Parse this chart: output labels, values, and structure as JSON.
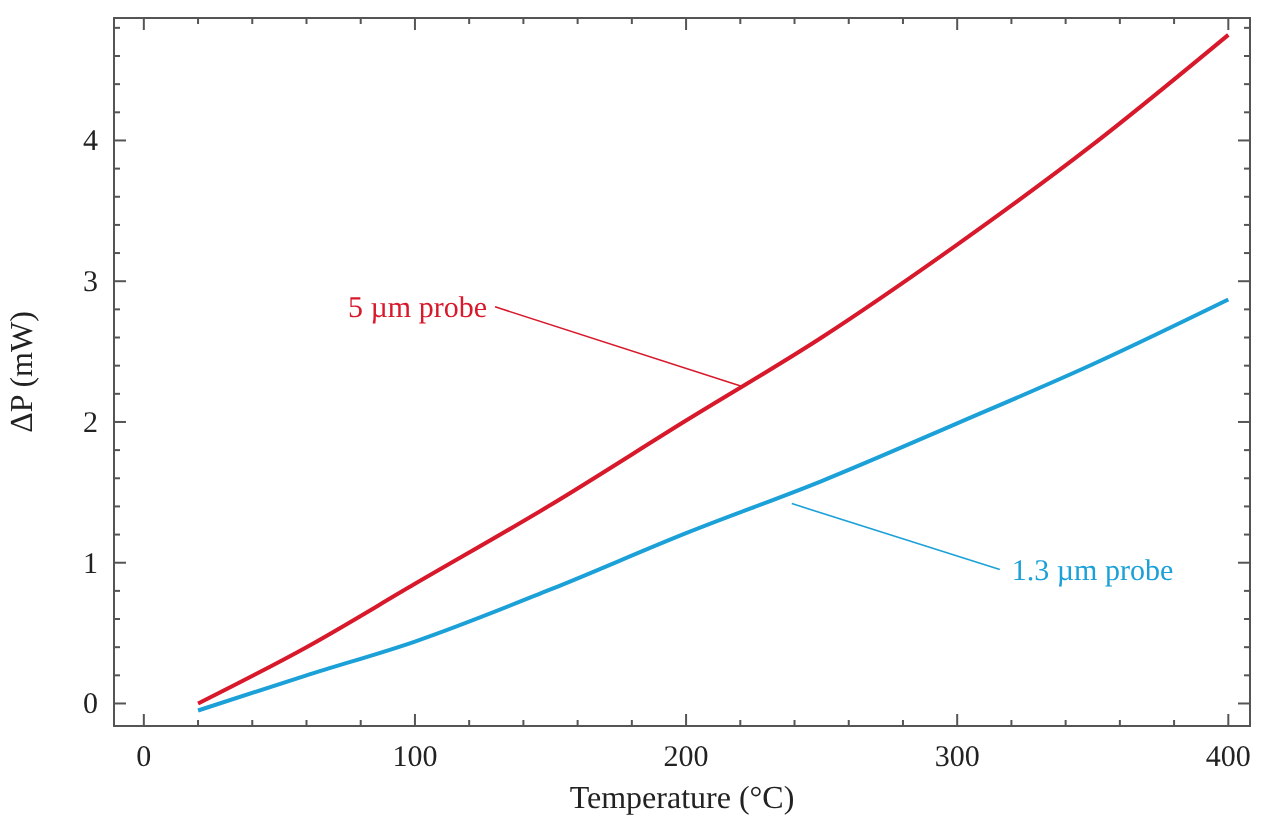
{
  "chart_data": {
    "type": "line",
    "xlabel": "Temperature (°C)",
    "ylabel": "ΔP (mW)",
    "xlim": [
      -11,
      408
    ],
    "ylim": [
      -0.16,
      4.87
    ],
    "xticks": [
      0,
      {
        "value": 20,
        "label": null
      },
      {
        "value": 40,
        "label": null
      },
      {
        "value": 60,
        "label": null
      },
      {
        "value": 80,
        "label": null
      },
      100,
      {
        "value": 120,
        "label": null
      },
      {
        "value": 140,
        "label": null
      },
      {
        "value": 160,
        "label": null
      },
      {
        "value": 180,
        "label": null
      },
      200,
      {
        "value": 220,
        "label": null
      },
      {
        "value": 240,
        "label": null
      },
      {
        "value": 260,
        "label": null
      },
      {
        "value": 280,
        "label": null
      },
      300,
      {
        "value": 320,
        "label": null
      },
      {
        "value": 340,
        "label": null
      },
      {
        "value": 360,
        "label": null
      },
      {
        "value": 380,
        "label": null
      },
      400
    ],
    "yticks": [
      0,
      {
        "value": 0.2,
        "label": null
      },
      {
        "value": 0.4,
        "label": null
      },
      {
        "value": 0.6,
        "label": null
      },
      {
        "value": 0.8,
        "label": null
      },
      1,
      {
        "value": 1.2,
        "label": null
      },
      {
        "value": 1.4,
        "label": null
      },
      {
        "value": 1.6,
        "label": null
      },
      {
        "value": 1.8,
        "label": null
      },
      2,
      {
        "value": 2.2,
        "label": null
      },
      {
        "value": 2.4,
        "label": null
      },
      {
        "value": 2.6,
        "label": null
      },
      {
        "value": 2.8,
        "label": null
      },
      3,
      {
        "value": 3.2,
        "label": null
      },
      {
        "value": 3.4,
        "label": null
      },
      {
        "value": 3.6,
        "label": null
      },
      {
        "value": 3.8,
        "label": null
      },
      4,
      {
        "value": 4.2,
        "label": null
      },
      {
        "value": 4.4,
        "label": null
      },
      {
        "value": 4.6,
        "label": null
      },
      {
        "value": 4.8,
        "label": null
      }
    ],
    "x": [
      20,
      60,
      100,
      150,
      200,
      250,
      300,
      350,
      400
    ],
    "series": [
      {
        "color": "#d7192b",
        "values": [
          0.0,
          0.4,
          0.85,
          1.41,
          2.01,
          2.6,
          3.26,
          3.97,
          4.75
        ]
      },
      {
        "color": "#1ba1d8",
        "values": [
          -0.05,
          0.2,
          0.44,
          0.81,
          1.21,
          1.58,
          1.99,
          2.41,
          2.87
        ]
      }
    ],
    "annotations": [
      {
        "text": "5 µm probe",
        "x": 221,
        "y": 2.25
      },
      {
        "text": "1.3 µm probe",
        "x": 239,
        "y": 1.42
      }
    ],
    "grid": false,
    "marker": "none",
    "line_style": "solid"
  }
}
